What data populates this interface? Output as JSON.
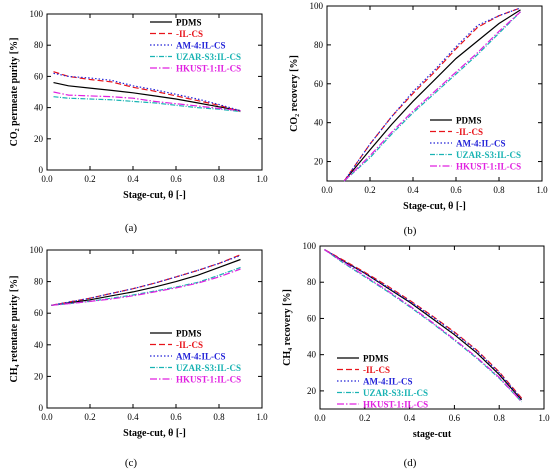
{
  "styles": {
    "PDMS": {
      "color": "#000000",
      "dash": ""
    },
    "IL-CS": {
      "color": "#e8141b",
      "dash": "6,3"
    },
    "AM-4:IL-CS": {
      "color": "#2323d8",
      "dash": "1.5,2"
    },
    "UZAR-S3:IL-CS": {
      "color": "#19b3b3",
      "dash": "5,1.5,1,1.5"
    },
    "HKUST-1:IL-CS": {
      "color": "#e020e0",
      "dash": "7,2,1.5,2"
    }
  },
  "chart_data": [
    {
      "type": "line",
      "panel": "(a)",
      "xlabel": "Stage-cut, θ [-]",
      "ylabel": "CO₂ permeate purity [%]",
      "xlim": [
        0,
        1.0
      ],
      "ylim": [
        0,
        100
      ],
      "xticks": [
        0.0,
        0.2,
        0.4,
        0.6,
        0.8,
        1.0
      ],
      "yticks": [
        0,
        20,
        40,
        60,
        80,
        100
      ],
      "legend_position": "top-right",
      "series": [
        {
          "name": "PDMS",
          "x": [
            0.03,
            0.1,
            0.2,
            0.3,
            0.4,
            0.5,
            0.6,
            0.7,
            0.8,
            0.9
          ],
          "y": [
            56,
            54,
            52.5,
            51,
            49.5,
            47.5,
            45.5,
            43,
            40.5,
            38
          ]
        },
        {
          "name": "-IL-CS",
          "x": [
            0.03,
            0.1,
            0.2,
            0.3,
            0.4,
            0.5,
            0.6,
            0.7,
            0.8,
            0.9
          ],
          "y": [
            63,
            60,
            58,
            56.5,
            53,
            50.5,
            47.5,
            44.5,
            41.5,
            37.5
          ]
        },
        {
          "name": "AM-4:IL-CS",
          "x": [
            0.03,
            0.1,
            0.2,
            0.3,
            0.4,
            0.5,
            0.6,
            0.7,
            0.8,
            0.9
          ],
          "y": [
            62,
            60,
            59,
            57.5,
            54,
            51.5,
            48.5,
            45.5,
            42,
            38
          ]
        },
        {
          "name": "UZAR-S3:IL-CS",
          "x": [
            0.03,
            0.1,
            0.2,
            0.3,
            0.4,
            0.5,
            0.6,
            0.7,
            0.8,
            0.9
          ],
          "y": [
            47,
            46,
            45.5,
            45,
            44,
            43,
            41.5,
            40,
            39,
            37.5
          ]
        },
        {
          "name": "HKUST-1:IL-CS",
          "x": [
            0.03,
            0.1,
            0.2,
            0.3,
            0.4,
            0.5,
            0.6,
            0.7,
            0.8,
            0.9
          ],
          "y": [
            50,
            48,
            47.5,
            47,
            46,
            44,
            42.5,
            41,
            39.5,
            38
          ]
        }
      ]
    },
    {
      "type": "line",
      "panel": "(b)",
      "xlabel": "Stage-cut, θ [-]",
      "ylabel": "CO₂ recovery [%]",
      "xlim": [
        0,
        1.0
      ],
      "ylim": [
        10,
        100
      ],
      "xticks": [
        0.0,
        0.2,
        0.4,
        0.6,
        0.8,
        1.0
      ],
      "yticks": [
        20,
        40,
        60,
        80,
        100
      ],
      "legend_position": "bottom-right",
      "series": [
        {
          "name": "PDMS",
          "x": [
            0.08,
            0.2,
            0.3,
            0.4,
            0.5,
            0.6,
            0.7,
            0.8,
            0.9
          ],
          "y": [
            10,
            26,
            39,
            51,
            62,
            73,
            82,
            91,
            98
          ]
        },
        {
          "name": "-IL-CS",
          "x": [
            0.08,
            0.2,
            0.3,
            0.4,
            0.5,
            0.6,
            0.7,
            0.8,
            0.9
          ],
          "y": [
            10,
            29,
            43,
            55,
            66,
            78,
            89,
            95,
            99
          ]
        },
        {
          "name": "AM-4:IL-CS",
          "x": [
            0.08,
            0.2,
            0.3,
            0.4,
            0.5,
            0.6,
            0.7,
            0.8,
            0.9
          ],
          "y": [
            10,
            29,
            43,
            56,
            67,
            79,
            90,
            95,
            99
          ]
        },
        {
          "name": "UZAR-S3:IL-CS",
          "x": [
            0.08,
            0.2,
            0.3,
            0.4,
            0.5,
            0.6,
            0.7,
            0.8,
            0.9
          ],
          "y": [
            10,
            22,
            34,
            45,
            55,
            65,
            75,
            86,
            97
          ]
        },
        {
          "name": "HKUST-1:IL-CS",
          "x": [
            0.08,
            0.2,
            0.3,
            0.4,
            0.5,
            0.6,
            0.7,
            0.8,
            0.9
          ],
          "y": [
            10,
            23,
            35,
            46,
            56,
            66,
            76,
            87,
            97
          ]
        }
      ]
    },
    {
      "type": "line",
      "panel": "(c)",
      "xlabel": "Stage-cut, θ [-]",
      "ylabel": "CH₄ retentate purity [%]",
      "xlim": [
        0,
        1.0
      ],
      "ylim": [
        0,
        100
      ],
      "xticks": [
        0.0,
        0.2,
        0.4,
        0.6,
        0.8,
        1.0
      ],
      "yticks": [
        0,
        20,
        40,
        60,
        80,
        100
      ],
      "legend_position": "bottom-right",
      "series": [
        {
          "name": "PDMS",
          "x": [
            0.02,
            0.1,
            0.2,
            0.3,
            0.4,
            0.5,
            0.6,
            0.7,
            0.8,
            0.9
          ],
          "y": [
            65,
            66.5,
            68.5,
            71,
            73.5,
            76.5,
            80,
            84,
            89,
            94
          ]
        },
        {
          "name": "-IL-CS",
          "x": [
            0.02,
            0.1,
            0.2,
            0.3,
            0.4,
            0.5,
            0.6,
            0.7,
            0.8,
            0.9
          ],
          "y": [
            65,
            67,
            69.5,
            72.5,
            75.5,
            79,
            83,
            87,
            91.5,
            97
          ]
        },
        {
          "name": "AM-4:IL-CS",
          "x": [
            0.02,
            0.1,
            0.2,
            0.3,
            0.4,
            0.5,
            0.6,
            0.7,
            0.8,
            0.9
          ],
          "y": [
            65,
            67,
            69.5,
            72.5,
            75.5,
            79,
            83,
            87,
            91.5,
            96.5
          ]
        },
        {
          "name": "UZAR-S3:IL-CS",
          "x": [
            0.02,
            0.1,
            0.2,
            0.3,
            0.4,
            0.5,
            0.6,
            0.7,
            0.8,
            0.9
          ],
          "y": [
            65,
            66,
            67.5,
            69.5,
            71.5,
            74,
            76.5,
            79.5,
            84,
            89
          ]
        },
        {
          "name": "HKUST-1:IL-CS",
          "x": [
            0.02,
            0.1,
            0.2,
            0.3,
            0.4,
            0.5,
            0.6,
            0.7,
            0.8,
            0.9
          ],
          "y": [
            65,
            66,
            67.5,
            69,
            71,
            73.5,
            76,
            79,
            83,
            88
          ]
        }
      ]
    },
    {
      "type": "line",
      "panel": "(d)",
      "xlabel": "stage-cut",
      "ylabel": "CH₄ recovery [%]",
      "xlim": [
        0,
        1.0
      ],
      "ylim": [
        10,
        100
      ],
      "xticks": [
        0.0,
        0.2,
        0.4,
        0.6,
        0.8,
        1.0
      ],
      "yticks": [
        20,
        40,
        60,
        80,
        100
      ],
      "legend_position": "bottom-left",
      "series": [
        {
          "name": "PDMS",
          "x": [
            0.02,
            0.1,
            0.2,
            0.3,
            0.4,
            0.5,
            0.6,
            0.7,
            0.8,
            0.9
          ],
          "y": [
            98,
            92,
            85,
            77,
            69,
            60,
            51,
            41,
            29,
            15
          ]
        },
        {
          "name": "-IL-CS",
          "x": [
            0.02,
            0.1,
            0.2,
            0.3,
            0.4,
            0.5,
            0.6,
            0.7,
            0.8,
            0.9
          ],
          "y": [
            98,
            92.5,
            85.5,
            78,
            70,
            61.5,
            52.5,
            42.5,
            30.5,
            16
          ]
        },
        {
          "name": "AM-4:IL-CS",
          "x": [
            0.02,
            0.1,
            0.2,
            0.3,
            0.4,
            0.5,
            0.6,
            0.7,
            0.8,
            0.9
          ],
          "y": [
            98,
            92,
            85,
            77.5,
            69.5,
            61,
            52,
            42,
            30,
            15.5
          ]
        },
        {
          "name": "UZAR-S3:IL-CS",
          "x": [
            0.02,
            0.1,
            0.2,
            0.3,
            0.4,
            0.5,
            0.6,
            0.7,
            0.8,
            0.9
          ],
          "y": [
            98,
            91,
            83,
            75,
            66.5,
            57.5,
            48,
            38,
            27,
            14
          ]
        },
        {
          "name": "HKUST-1:IL-CS",
          "x": [
            0.02,
            0.1,
            0.2,
            0.3,
            0.4,
            0.5,
            0.6,
            0.7,
            0.8,
            0.9
          ],
          "y": [
            98,
            91.5,
            83.5,
            75.5,
            67,
            58,
            48.5,
            38.5,
            27.5,
            14
          ]
        }
      ]
    }
  ]
}
